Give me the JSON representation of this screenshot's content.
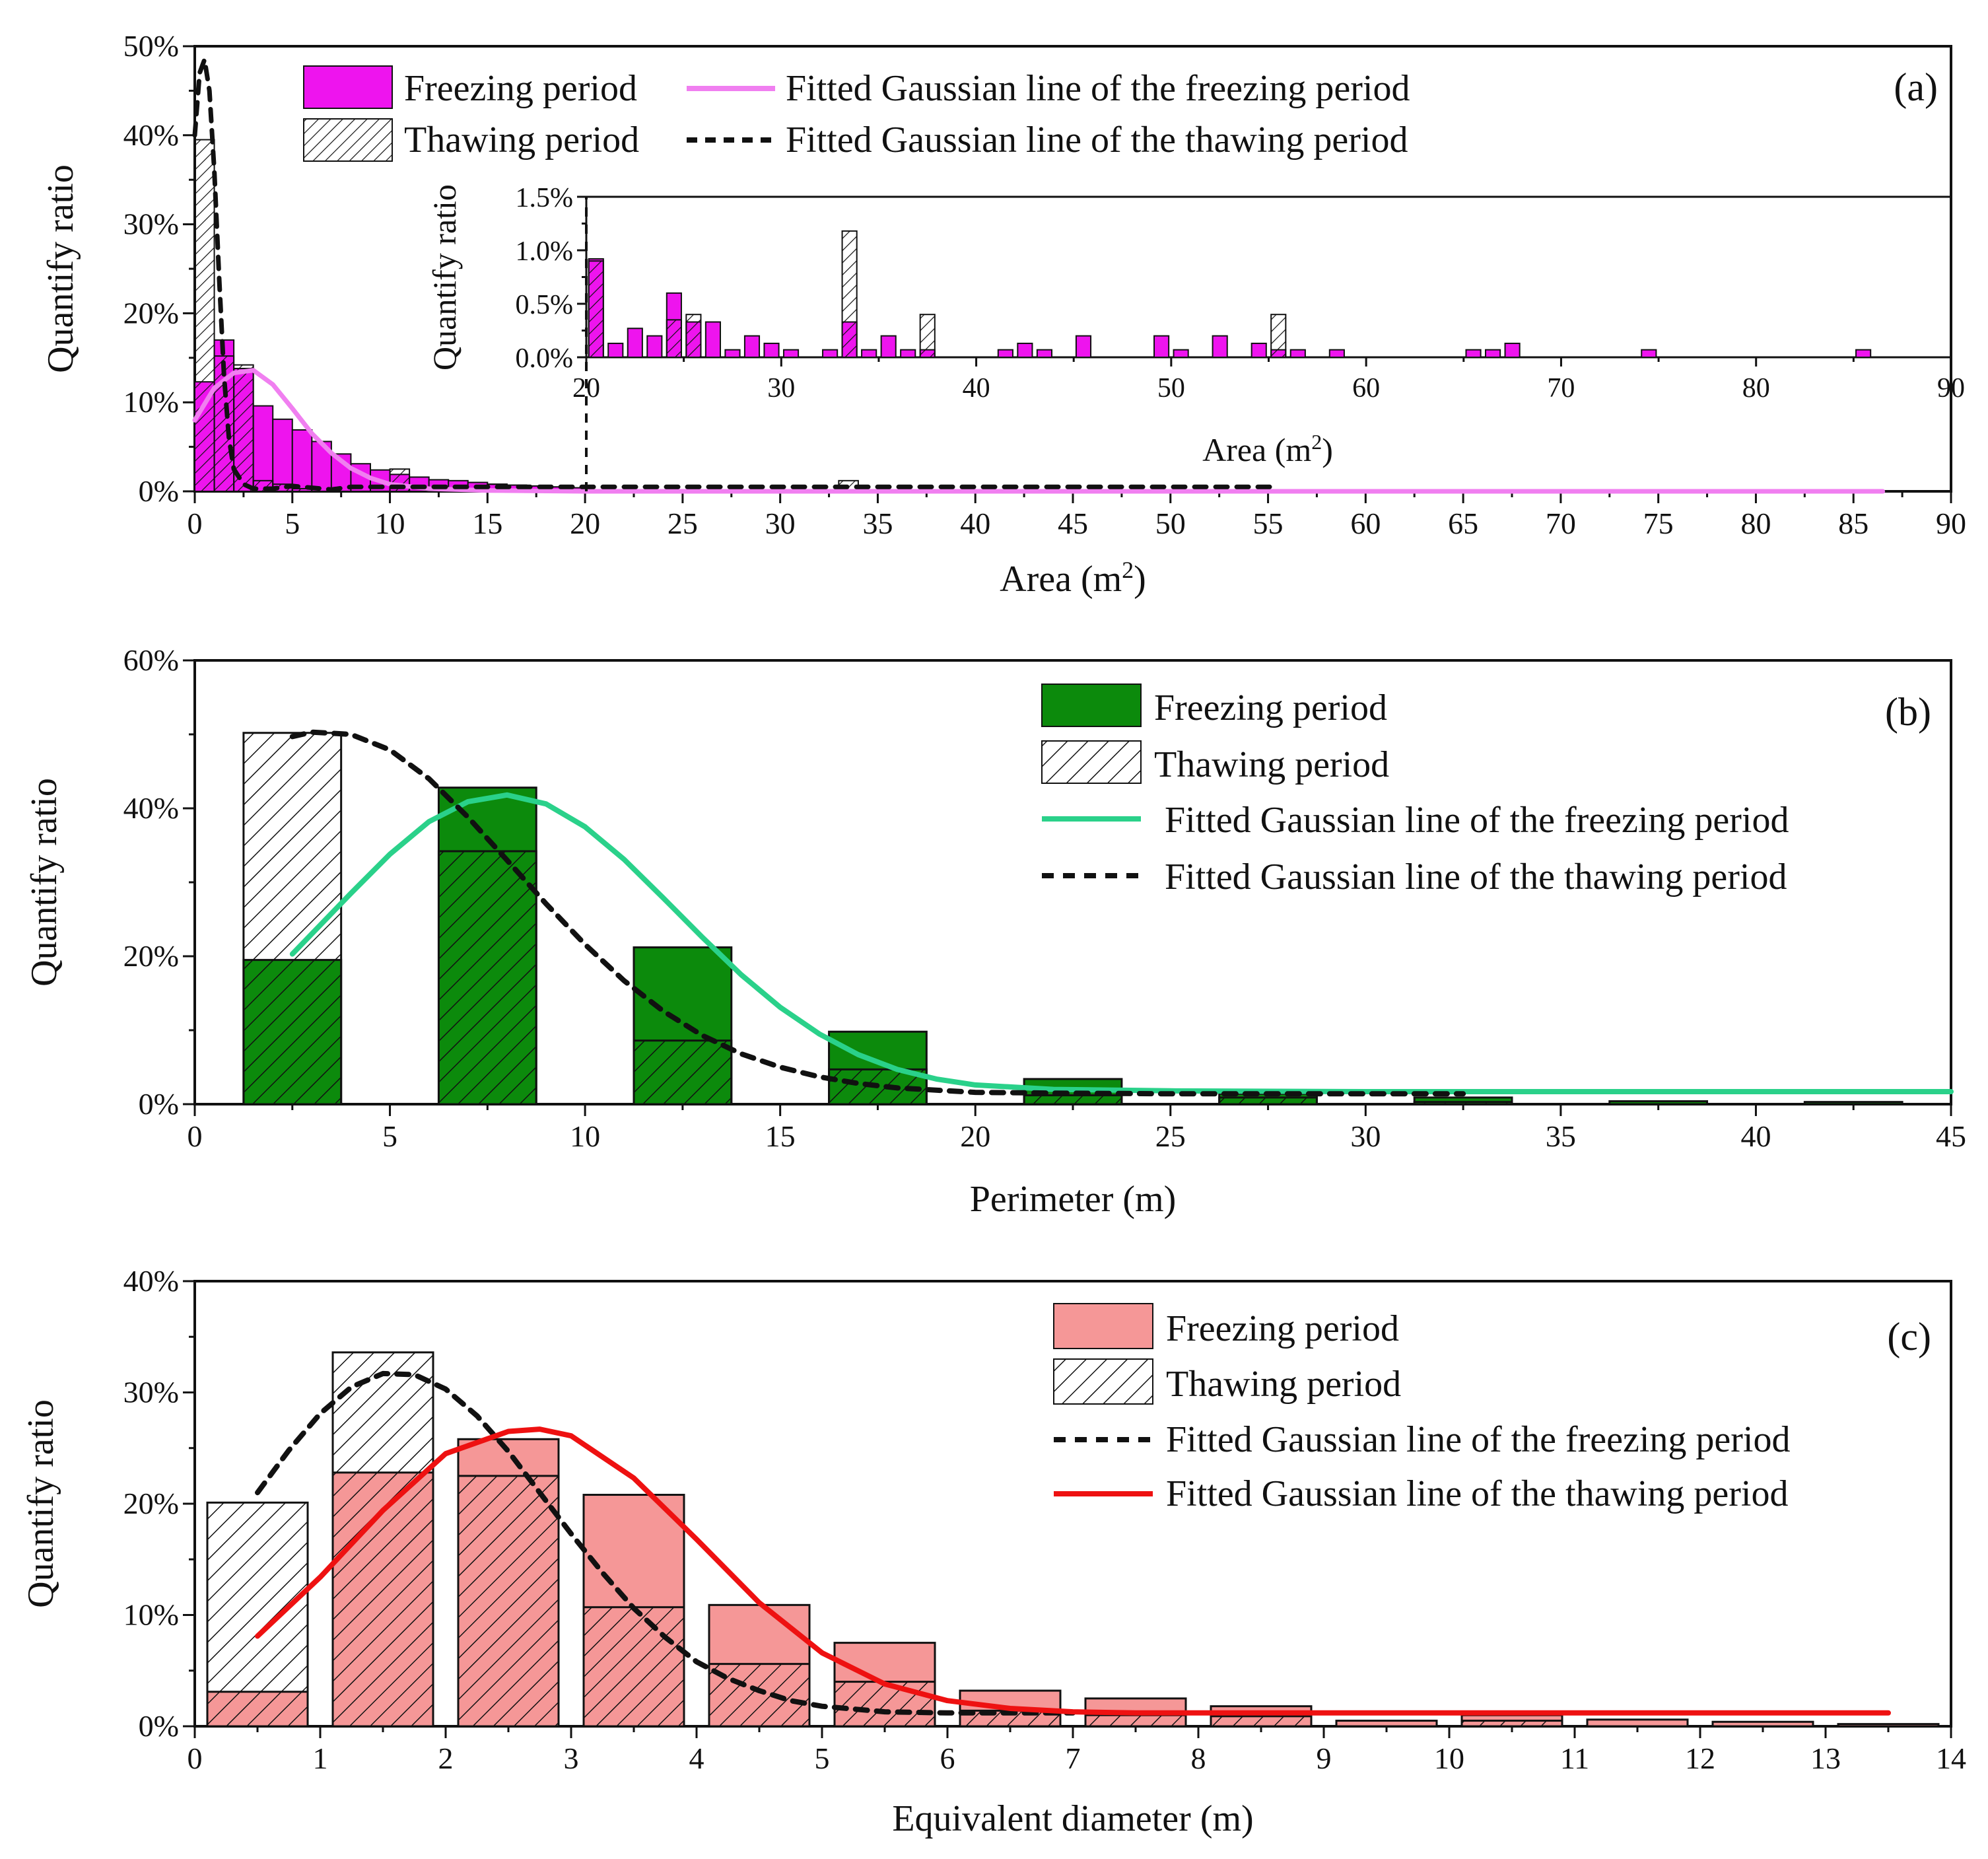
{
  "chart_data": [
    {
      "id": "a",
      "type": "bar",
      "panel_label": "(a)",
      "xlabel": "Area (m",
      "xlabel_sup": "2",
      "xlabel_close": ")",
      "ylabel": "Quantify ratio",
      "xlim": [
        0,
        90
      ],
      "ylim": [
        0,
        50
      ],
      "xticks": [
        0,
        5,
        10,
        15,
        20,
        25,
        30,
        35,
        40,
        45,
        50,
        55,
        60,
        65,
        70,
        75,
        80,
        85,
        90
      ],
      "yticks": [
        0,
        10,
        20,
        30,
        40,
        50
      ],
      "ytick_labels": [
        "0%",
        "10%",
        "20%",
        "30%",
        "40%",
        "50%"
      ],
      "bin_width": 1,
      "freezing_color": "#ee14ee",
      "freezing_fit_color": "#f07ff0",
      "thawing_fit_color": "#111111",
      "legend": {
        "freezing": "Freezing period",
        "thawing": "Thawing period",
        "freezing_fit": "Fitted Gaussian line of the freezing period",
        "thawing_fit": "Fitted Gaussian line of the thawing period"
      },
      "series": [
        {
          "name": "Freezing period",
          "x": [
            0.5,
            1.5,
            2.5,
            3.5,
            4.5,
            5.5,
            6.5,
            7.5,
            8.5,
            9.5,
            10.5,
            11.5,
            12.5,
            13.5,
            14.5,
            15.5,
            16.5,
            17.5,
            18.5,
            19.5
          ],
          "values": [
            12.3,
            17.0,
            13.8,
            9.6,
            8.1,
            6.9,
            5.6,
            4.2,
            3.1,
            2.4,
            1.9,
            1.6,
            1.3,
            1.2,
            1.0,
            0.8,
            0.7,
            0.6,
            0.5,
            0.4
          ]
        },
        {
          "name": "Thawing period",
          "x": [
            0.5,
            1.5,
            2.5,
            3.5,
            4.5,
            5.5,
            10.5,
            15.5,
            33.5
          ],
          "values": [
            39.5,
            15.2,
            14.2,
            1.2,
            0.8,
            0.3,
            2.5,
            0.8,
            1.2
          ]
        },
        {
          "name": "Fitted Gaussian line of the freezing period",
          "x": [
            0,
            1,
            2,
            3,
            4,
            5,
            6,
            7,
            8,
            9,
            10,
            12,
            15,
            20,
            40,
            60,
            86.5
          ],
          "values": [
            8.0,
            11.6,
            13.3,
            13.6,
            12.0,
            9.3,
            6.5,
            4.3,
            2.6,
            1.5,
            0.8,
            0.3,
            0.1,
            0.0,
            0.0,
            0.0,
            0.0
          ]
        },
        {
          "name": "Fitted Gaussian line of the thawing period",
          "x": [
            0,
            0.25,
            0.5,
            0.75,
            1.0,
            1.25,
            1.5,
            1.75,
            2.0,
            2.5,
            3.0,
            4.0,
            5.0,
            6.0,
            7.0,
            8.0,
            10,
            20,
            40,
            55.3
          ],
          "values": [
            40,
            47,
            48.5,
            45,
            36,
            24,
            13,
            6,
            2.5,
            0.8,
            0.3,
            0.3,
            0.6,
            0.4,
            0.2,
            0.5,
            0.5,
            0.5,
            0.5,
            0.5
          ]
        }
      ]
    },
    {
      "id": "a-inset",
      "type": "bar",
      "xlabel": "Area (m",
      "xlabel_sup": "2",
      "xlabel_close": ")",
      "ylabel": "Quantify ratio",
      "xlim": [
        20,
        90
      ],
      "ylim": [
        0,
        1.5
      ],
      "xticks": [
        20,
        30,
        40,
        50,
        60,
        70,
        80,
        90
      ],
      "yticks": [
        0,
        0.5,
        1.0,
        1.5
      ],
      "ytick_labels": [
        "0.0%",
        "0.5%",
        "1.0%",
        "1.5%"
      ],
      "bin_width": 0.75,
      "series": [
        {
          "name": "Freezing period",
          "x": [
            20.5,
            21.5,
            22.5,
            23.5,
            24.5,
            25.5,
            26.5,
            27.5,
            28.5,
            29.5,
            30.5,
            32.5,
            33.5,
            34.5,
            35.5,
            36.5,
            37.5,
            41.5,
            42.5,
            43.5,
            45.5,
            49.5,
            50.5,
            52.5,
            54.5,
            55.5,
            56.5,
            58.5,
            65.5,
            66.5,
            67.5,
            74.5,
            85.5
          ],
          "values": [
            0.92,
            0.13,
            0.27,
            0.2,
            0.6,
            0.33,
            0.33,
            0.07,
            0.2,
            0.13,
            0.07,
            0.07,
            0.33,
            0.07,
            0.2,
            0.07,
            0.07,
            0.07,
            0.13,
            0.07,
            0.2,
            0.2,
            0.07,
            0.2,
            0.13,
            0.07,
            0.07,
            0.07,
            0.07,
            0.07,
            0.13,
            0.07,
            0.07
          ]
        },
        {
          "name": "Thawing period",
          "x": [
            20.5,
            24.5,
            25.5,
            33.5,
            37.5,
            55.5
          ],
          "values": [
            0.9,
            0.35,
            0.4,
            1.18,
            0.4,
            0.4
          ]
        }
      ]
    },
    {
      "id": "b",
      "type": "bar",
      "panel_label": "(b)",
      "xlabel": "Perimeter (m)",
      "ylabel": "Quantify ratio",
      "xlim": [
        0,
        45
      ],
      "ylim": [
        0,
        60
      ],
      "xticks": [
        0,
        5,
        10,
        15,
        20,
        25,
        30,
        35,
        40,
        45
      ],
      "yticks": [
        0,
        20,
        40,
        60
      ],
      "ytick_labels": [
        "0%",
        "20%",
        "40%",
        "60%"
      ],
      "bin_width": 2.5,
      "freezing_color": "#0c8a0c",
      "freezing_fit_color": "#2ad18a",
      "thawing_fit_color": "#111111",
      "legend": {
        "freezing": "Freezing period",
        "thawing": "Thawing period",
        "freezing_fit": "Fitted Gaussian line of the freezing period",
        "thawing_fit": "Fitted Gaussian line of the thawing period"
      },
      "series": [
        {
          "name": "Freezing period",
          "x": [
            2.5,
            7.5,
            12.5,
            17.5,
            22.5,
            27.5,
            32.5,
            37.5,
            42.5
          ],
          "values": [
            19.5,
            42.8,
            21.2,
            9.8,
            3.4,
            1.4,
            0.9,
            0.4,
            0.3
          ]
        },
        {
          "name": "Thawing period",
          "x": [
            2.5,
            7.5,
            12.5,
            17.5,
            22.5,
            27.5,
            32.5
          ],
          "values": [
            50.2,
            34.2,
            8.6,
            4.7,
            1.2,
            0.9,
            0.3
          ]
        },
        {
          "name": "Fitted Gaussian line of the freezing period",
          "x": [
            2.5,
            4,
            5,
            6,
            7,
            8,
            9,
            10,
            11,
            12,
            13,
            14,
            15,
            16,
            17,
            18,
            19,
            20,
            22,
            25,
            30,
            35,
            40,
            45
          ],
          "values": [
            20.3,
            28.5,
            33.8,
            38.2,
            40.9,
            41.8,
            40.6,
            37.5,
            33.1,
            27.9,
            22.6,
            17.5,
            13.1,
            9.5,
            6.7,
            4.7,
            3.4,
            2.6,
            2.0,
            1.8,
            1.7,
            1.7,
            1.7,
            1.7
          ]
        },
        {
          "name": "Fitted Gaussian line of the thawing period",
          "x": [
            2.5,
            3,
            4,
            5,
            6,
            7,
            8,
            9,
            10,
            11,
            12,
            13,
            14,
            15,
            16,
            17,
            18,
            20,
            22,
            25,
            28,
            32.5
          ],
          "values": [
            49.7,
            50.3,
            50.0,
            47.9,
            44.0,
            38.8,
            33.0,
            27.1,
            21.6,
            16.7,
            12.6,
            9.3,
            6.8,
            5.0,
            3.7,
            2.8,
            2.2,
            1.6,
            1.5,
            1.4,
            1.4,
            1.4
          ]
        }
      ]
    },
    {
      "id": "c",
      "type": "bar",
      "panel_label": "(c)",
      "xlabel": "Equivalent diameter (m)",
      "ylabel": "Quantify ratio",
      "xlim": [
        0,
        14
      ],
      "ylim": [
        0,
        40
      ],
      "xticks": [
        0,
        1,
        2,
        3,
        4,
        5,
        6,
        7,
        8,
        9,
        10,
        11,
        12,
        13,
        14
      ],
      "yticks": [
        0,
        10,
        20,
        30,
        40
      ],
      "ytick_labels": [
        "0%",
        "10%",
        "20%",
        "30%",
        "40%"
      ],
      "bin_width": 0.8,
      "freezing_color": "#f59797",
      "freezing_fit_color": "#ee1111",
      "thawing_fit_color": "#111111",
      "legend": {
        "freezing": "Freezing period",
        "thawing": "Thawing period",
        "freezing_fit": "Fitted Gaussian line of the freezing period",
        "thawing_fit": "Fitted Gaussian line of the thawing period"
      },
      "series": [
        {
          "name": "Freezing period",
          "x": [
            0.5,
            1.5,
            2.5,
            3.5,
            4.5,
            5.5,
            6.5,
            7.5,
            8.5,
            9.5,
            10.5,
            11.5,
            12.5,
            13.5
          ],
          "values": [
            3.1,
            22.8,
            25.8,
            20.8,
            10.9,
            7.5,
            3.2,
            2.5,
            1.8,
            0.5,
            1.0,
            0.6,
            0.4,
            0.2
          ]
        },
        {
          "name": "Thawing period",
          "x": [
            0.5,
            1.5,
            2.5,
            3.5,
            4.5,
            5.5,
            6.5,
            7.5,
            8.5,
            10.5
          ],
          "values": [
            20.1,
            33.6,
            22.5,
            10.7,
            5.6,
            4.0,
            1.4,
            1.0,
            0.9,
            0.5
          ]
        },
        {
          "name": "Fitted Gaussian line of the freezing period",
          "x": [
            0.5,
            0.75,
            1.0,
            1.25,
            1.5,
            1.75,
            2.0,
            2.25,
            2.5,
            2.75,
            3.0,
            3.25,
            3.5,
            3.75,
            4.0,
            4.25,
            4.5,
            4.75,
            5.0,
            5.5,
            6,
            6.5,
            7
          ],
          "values": [
            21.0,
            24.8,
            28.1,
            30.5,
            31.7,
            31.6,
            30.3,
            27.9,
            24.7,
            21.0,
            17.3,
            13.8,
            10.6,
            8.0,
            5.8,
            4.3,
            3.2,
            2.3,
            1.8,
            1.3,
            1.2,
            1.2,
            1.2
          ]
        },
        {
          "name": "Fitted Gaussian line of the thawing period",
          "x": [
            0.5,
            1.0,
            1.5,
            2.0,
            2.5,
            2.75,
            3.0,
            3.5,
            4.0,
            4.5,
            5.0,
            5.5,
            6.0,
            6.5,
            7.0,
            7.5,
            8.0,
            9,
            10,
            11,
            12,
            13,
            13.5
          ],
          "values": [
            8.1,
            13.4,
            19.4,
            24.5,
            26.5,
            26.7,
            26.1,
            22.3,
            16.8,
            11.1,
            6.6,
            3.8,
            2.3,
            1.6,
            1.3,
            1.2,
            1.2,
            1.2,
            1.2,
            1.2,
            1.2,
            1.2,
            1.2
          ]
        }
      ]
    }
  ]
}
